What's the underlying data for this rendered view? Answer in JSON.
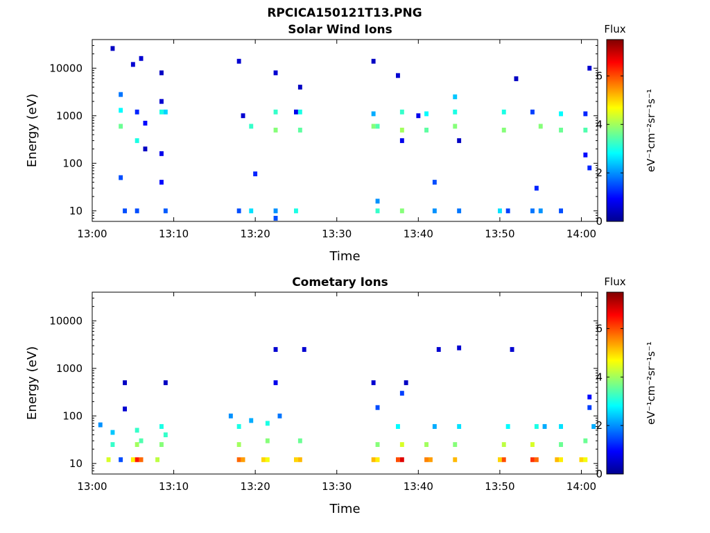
{
  "figure": {
    "title": "RPCICA150121T13.PNG"
  },
  "chart_data": [
    {
      "type": "heatmap",
      "title": "Solar Wind Ions",
      "xlabel": "Time",
      "ylabel": "Energy (eV)",
      "x_ticks": [
        "13:00",
        "13:10",
        "13:20",
        "13:30",
        "13:40",
        "13:50",
        "14:00"
      ],
      "y_ticks": [
        "10",
        "100",
        "1000",
        "10000"
      ],
      "y_scale": "log",
      "ylim": [
        6,
        40000
      ],
      "xlim_minutes": [
        0,
        62
      ],
      "colorbar": {
        "title": "Flux",
        "label": "eV⁻¹cm⁻²sr⁻¹s⁻¹",
        "ticks": [
          "0",
          "2",
          "4",
          "6"
        ],
        "range": [
          0,
          7.5
        ]
      },
      "cells": [
        [
          2.5,
          26000,
          0.5
        ],
        [
          3.5,
          2800,
          1.8
        ],
        [
          3.5,
          1300,
          2.8
        ],
        [
          3.5,
          600,
          3.6
        ],
        [
          3.5,
          50,
          1.5
        ],
        [
          4,
          10,
          1.5
        ],
        [
          5,
          12000,
          0.6
        ],
        [
          5.5,
          1200,
          1.2
        ],
        [
          5.5,
          300,
          3.0
        ],
        [
          5.5,
          10,
          1.5
        ],
        [
          6,
          16000,
          0.6
        ],
        [
          6.5,
          700,
          1.0
        ],
        [
          6.5,
          200,
          0.5
        ],
        [
          8.5,
          8000,
          0.5
        ],
        [
          8.5,
          2000,
          0.6
        ],
        [
          8.5,
          1200,
          3.0
        ],
        [
          9,
          1200,
          2.5
        ],
        [
          8.5,
          160,
          0.8
        ],
        [
          9,
          10,
          1.6
        ],
        [
          8.5,
          40,
          1.0
        ],
        [
          18,
          14000,
          0.6
        ],
        [
          18.5,
          1000,
          0.6
        ],
        [
          19.5,
          600,
          3.2
        ],
        [
          19.5,
          10,
          2.6
        ],
        [
          18,
          10,
          1.5
        ],
        [
          20,
          60,
          1.2
        ],
        [
          22.5,
          8000,
          0.6
        ],
        [
          22.5,
          1200,
          3.2
        ],
        [
          22.5,
          500,
          3.8
        ],
        [
          22.5,
          10,
          2.0
        ],
        [
          22.5,
          7,
          1.5
        ],
        [
          25,
          1200,
          0.8
        ],
        [
          25.5,
          1200,
          3.0
        ],
        [
          25.5,
          500,
          3.5
        ],
        [
          25.5,
          4000,
          0.5
        ],
        [
          25,
          10,
          3.0
        ],
        [
          34.5,
          14000,
          0.5
        ],
        [
          34.5,
          1100,
          2.2
        ],
        [
          34.5,
          600,
          3.8
        ],
        [
          35,
          600,
          3.4
        ],
        [
          35,
          10,
          3.2
        ],
        [
          35,
          16,
          2.0
        ],
        [
          37.5,
          7000,
          0.6
        ],
        [
          38,
          1200,
          3.2
        ],
        [
          38,
          500,
          4.0
        ],
        [
          38,
          10,
          3.8
        ],
        [
          38,
          300,
          0.8
        ],
        [
          40,
          1000,
          0.8
        ],
        [
          41,
          1100,
          2.8
        ],
        [
          41,
          500,
          3.5
        ],
        [
          42,
          40,
          1.5
        ],
        [
          42,
          10,
          2.0
        ],
        [
          44.5,
          2500,
          2.4
        ],
        [
          44.5,
          1200,
          3.0
        ],
        [
          44.5,
          600,
          3.8
        ],
        [
          45,
          10,
          1.8
        ],
        [
          45,
          300,
          0.5
        ],
        [
          50.5,
          1200,
          3.0
        ],
        [
          50.5,
          500,
          3.8
        ],
        [
          50,
          10,
          2.6
        ],
        [
          51,
          10,
          1.4
        ],
        [
          52,
          6000,
          0.5
        ],
        [
          54,
          1200,
          1.4
        ],
        [
          54,
          10,
          1.8
        ],
        [
          54.5,
          30,
          1.2
        ],
        [
          55,
          600,
          3.8
        ],
        [
          55,
          10,
          2.0
        ],
        [
          57.5,
          1100,
          2.8
        ],
        [
          57.5,
          500,
          3.6
        ],
        [
          57.5,
          10,
          1.5
        ],
        [
          60.5,
          1100,
          1.2
        ],
        [
          60.5,
          500,
          3.4
        ],
        [
          60.5,
          150,
          1.0
        ],
        [
          61,
          10000,
          0.6
        ],
        [
          61,
          80,
          1.2
        ]
      ]
    },
    {
      "type": "heatmap",
      "title": "Cometary Ions",
      "xlabel": "Time",
      "ylabel": "Energy (eV)",
      "x_ticks": [
        "13:00",
        "13:10",
        "13:20",
        "13:30",
        "13:40",
        "13:50",
        "14:00"
      ],
      "y_ticks": [
        "10",
        "100",
        "1000",
        "10000"
      ],
      "y_scale": "log",
      "ylim": [
        6,
        40000
      ],
      "xlim_minutes": [
        0,
        62
      ],
      "colorbar": {
        "title": "Flux",
        "label": "eV⁻¹cm⁻²sr⁻¹s⁻¹",
        "ticks": [
          "0",
          "2",
          "4",
          "6"
        ],
        "range": [
          0,
          7.5
        ]
      },
      "cells": [
        [
          1,
          65,
          2.0
        ],
        [
          2,
          12,
          4.4
        ],
        [
          2.5,
          25,
          3.2
        ],
        [
          2.5,
          45,
          2.4
        ],
        [
          3.5,
          12,
          1.5
        ],
        [
          4,
          500,
          0.5
        ],
        [
          4,
          140,
          0.6
        ],
        [
          5,
          12,
          4.8
        ],
        [
          5.5,
          12,
          6.4
        ],
        [
          6,
          12,
          5.8
        ],
        [
          5.5,
          25,
          4.0
        ],
        [
          5.5,
          50,
          3.2
        ],
        [
          6,
          30,
          3.4
        ],
        [
          8,
          12,
          4.2
        ],
        [
          8.5,
          25,
          3.8
        ],
        [
          8.5,
          60,
          3.0
        ],
        [
          9,
          500,
          0.5
        ],
        [
          9,
          40,
          3.2
        ],
        [
          17,
          100,
          2.0
        ],
        [
          18,
          12,
          5.8
        ],
        [
          18.5,
          12,
          5.4
        ],
        [
          18,
          25,
          4.0
        ],
        [
          18,
          60,
          3.0
        ],
        [
          19.5,
          80,
          2.2
        ],
        [
          21,
          12,
          5.0
        ],
        [
          21.5,
          12,
          4.6
        ],
        [
          21.5,
          30,
          3.8
        ],
        [
          21.5,
          70,
          3.0
        ],
        [
          22.5,
          2500,
          0.6
        ],
        [
          22.5,
          500,
          0.8
        ],
        [
          23,
          100,
          1.8
        ],
        [
          25,
          12,
          5.0
        ],
        [
          25.5,
          12,
          5.2
        ],
        [
          25.5,
          30,
          3.6
        ],
        [
          26,
          2500,
          0.6
        ],
        [
          34.5,
          500,
          0.6
        ],
        [
          34.5,
          12,
          5.2
        ],
        [
          35,
          12,
          4.8
        ],
        [
          35,
          25,
          3.8
        ],
        [
          35,
          150,
          1.5
        ],
        [
          37.5,
          12,
          6.0
        ],
        [
          38,
          12,
          6.8
        ],
        [
          38,
          25,
          4.4
        ],
        [
          37.5,
          60,
          2.8
        ],
        [
          38,
          300,
          1.4
        ],
        [
          38.5,
          500,
          0.5
        ],
        [
          41,
          12,
          5.6
        ],
        [
          41.5,
          12,
          5.4
        ],
        [
          41,
          25,
          4.0
        ],
        [
          42,
          60,
          2.2
        ],
        [
          42.5,
          2500,
          0.6
        ],
        [
          44.5,
          12,
          5.2
        ],
        [
          44.5,
          25,
          3.8
        ],
        [
          45,
          60,
          2.6
        ],
        [
          45,
          2700,
          0.6
        ],
        [
          50,
          12,
          5.0
        ],
        [
          50.5,
          12,
          6.0
        ],
        [
          50.5,
          25,
          4.2
        ],
        [
          51,
          60,
          2.8
        ],
        [
          51.5,
          2500,
          0.6
        ],
        [
          54,
          12,
          6.2
        ],
        [
          54.5,
          12,
          5.8
        ],
        [
          54,
          25,
          4.4
        ],
        [
          54.5,
          60,
          3.0
        ],
        [
          55.5,
          60,
          2.2
        ],
        [
          57,
          12,
          5.2
        ],
        [
          57.5,
          12,
          4.8
        ],
        [
          57.5,
          25,
          3.6
        ],
        [
          57.5,
          60,
          2.6
        ],
        [
          60,
          12,
          5.0
        ],
        [
          60.5,
          12,
          4.6
        ],
        [
          60.5,
          30,
          3.6
        ],
        [
          61,
          150,
          1.4
        ],
        [
          61,
          250,
          1.0
        ],
        [
          61.5,
          60,
          2.2
        ]
      ]
    }
  ]
}
